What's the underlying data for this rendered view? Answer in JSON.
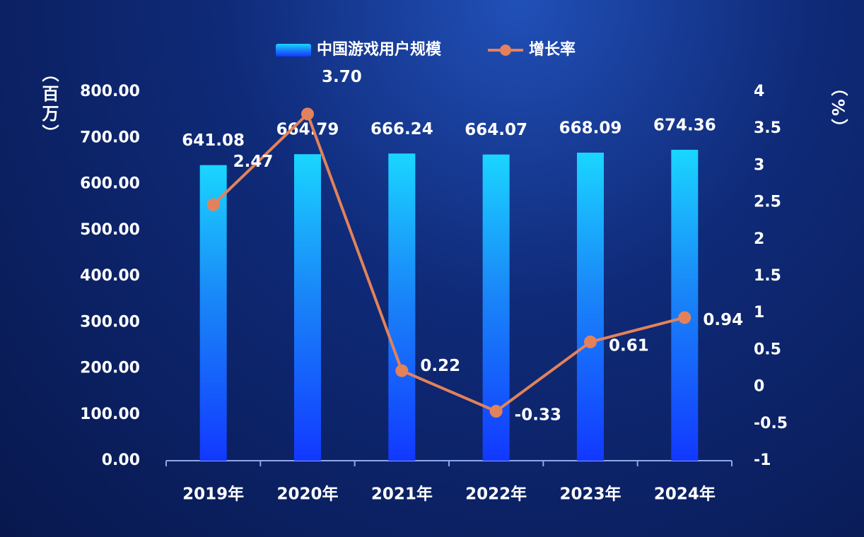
{
  "chart_data": {
    "type": "bar_line",
    "categories": [
      "2019年",
      "2020年",
      "2021年",
      "2022年",
      "2023年",
      "2024年"
    ],
    "series": [
      {
        "name": "中国游戏用户规模",
        "type": "bar",
        "color": "#1238ff",
        "values": [
          641.08,
          664.79,
          666.24,
          664.07,
          668.09,
          674.36
        ]
      },
      {
        "name": "增长率",
        "type": "line",
        "axis": "y2",
        "color": "#e3825a",
        "values": [
          2.47,
          3.7,
          0.22,
          -0.33,
          0.61,
          0.94
        ],
        "value_labels": [
          "2.47",
          "3.70",
          "0.22",
          "-0.33",
          "0.61",
          "0.94"
        ]
      }
    ],
    "y_label": "（百万）",
    "y2_label": "（%）",
    "ylim": [
      0,
      800
    ],
    "yticks": [
      {
        "value": 0,
        "label": "0.00"
      },
      {
        "value": 100,
        "label": "100.00"
      },
      {
        "value": 200,
        "label": "200.00"
      },
      {
        "value": 300,
        "label": "300.00"
      },
      {
        "value": 400,
        "label": "400.00"
      },
      {
        "value": 500,
        "label": "500.00"
      },
      {
        "value": 600,
        "label": "600.00"
      },
      {
        "value": 700,
        "label": "700.00"
      },
      {
        "value": 800,
        "label": "800.00"
      }
    ],
    "y2lim": [
      -1,
      4
    ],
    "y2ticks": [
      -1,
      -0.5,
      0,
      0.5,
      1,
      1.5,
      2,
      2.5,
      3,
      3.5,
      4
    ],
    "legend": "top"
  }
}
